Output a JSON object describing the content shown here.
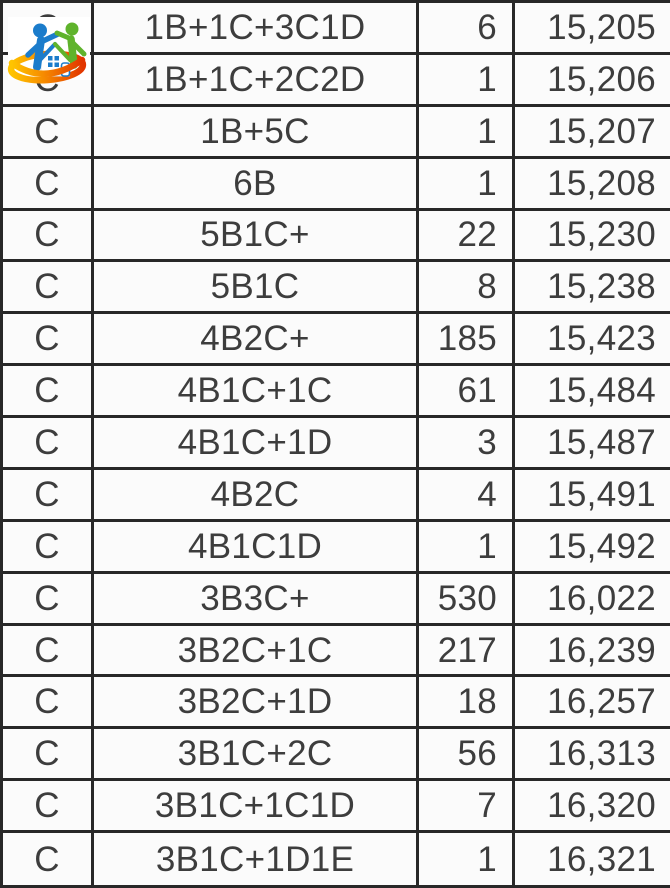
{
  "logo": {
    "label": "house-and-people-logo",
    "colors": {
      "blue": "#1B7CCB",
      "green": "#5FB32C",
      "swoosh_yellow": "#FFC400",
      "swoosh_orange": "#F68B00",
      "swoosh_red": "#E23500"
    }
  },
  "colors": {
    "grid_line": "#282828",
    "cell_background": "#FBFBFB",
    "text": "#3D3D3D"
  },
  "table": {
    "rows": [
      {
        "category": "C",
        "code": "1B+1C+3C1D",
        "count": "6",
        "value": "15,205"
      },
      {
        "category": "C",
        "code": "1B+1C+2C2D",
        "count": "1",
        "value": "15,206"
      },
      {
        "category": "C",
        "code": "1B+5C",
        "count": "1",
        "value": "15,207"
      },
      {
        "category": "C",
        "code": "6B",
        "count": "1",
        "value": "15,208"
      },
      {
        "category": "C",
        "code": "5B1C+",
        "count": "22",
        "value": "15,230"
      },
      {
        "category": "C",
        "code": "5B1C",
        "count": "8",
        "value": "15,238"
      },
      {
        "category": "C",
        "code": "4B2C+",
        "count": "185",
        "value": "15,423"
      },
      {
        "category": "C",
        "code": "4B1C+1C",
        "count": "61",
        "value": "15,484"
      },
      {
        "category": "C",
        "code": "4B1C+1D",
        "count": "3",
        "value": "15,487"
      },
      {
        "category": "C",
        "code": "4B2C",
        "count": "4",
        "value": "15,491"
      },
      {
        "category": "C",
        "code": "4B1C1D",
        "count": "1",
        "value": "15,492"
      },
      {
        "category": "C",
        "code": "3B3C+",
        "count": "530",
        "value": "16,022"
      },
      {
        "category": "C",
        "code": "3B2C+1C",
        "count": "217",
        "value": "16,239"
      },
      {
        "category": "C",
        "code": "3B2C+1D",
        "count": "18",
        "value": "16,257"
      },
      {
        "category": "C",
        "code": "3B1C+2C",
        "count": "56",
        "value": "16,313"
      },
      {
        "category": "C",
        "code": "3B1C+1C1D",
        "count": "7",
        "value": "16,320"
      },
      {
        "category": "C",
        "code": "3B1C+1D1E",
        "count": "1",
        "value": "16,321"
      }
    ]
  }
}
